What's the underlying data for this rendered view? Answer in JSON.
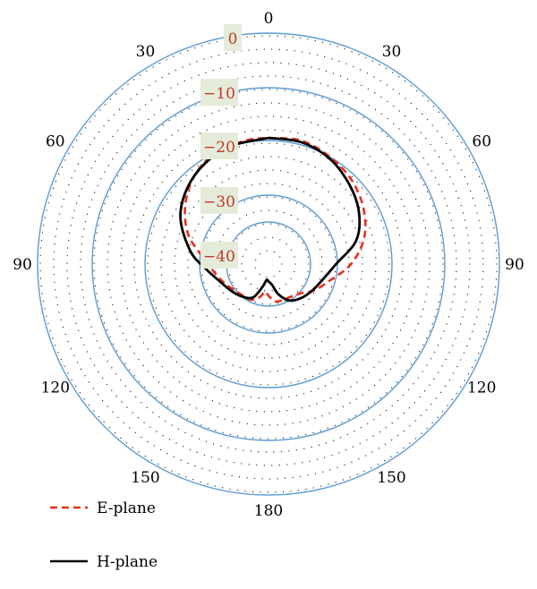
{
  "chart_data": {
    "type": "polar-line",
    "title": "",
    "r_tick_labels": [
      "0",
      "−10",
      "−20",
      "−30",
      "−40"
    ],
    "r_ticks": [
      0,
      -10,
      -20,
      -30,
      -40
    ],
    "r_range": [
      -50,
      0
    ],
    "angle_tick_labels": [
      {
        "angle": 0,
        "label": "0"
      },
      {
        "angle": 30,
        "label": "30"
      },
      {
        "angle": 60,
        "label": "60"
      },
      {
        "angle": 90,
        "label": "90"
      },
      {
        "angle": 120,
        "label": "120"
      },
      {
        "angle": 150,
        "label": "150"
      },
      {
        "angle": 180,
        "label": "180"
      },
      {
        "angle": 210,
        "label": "150"
      },
      {
        "angle": 240,
        "label": "120"
      },
      {
        "angle": 270,
        "label": "90"
      },
      {
        "angle": 300,
        "label": "60"
      },
      {
        "angle": 330,
        "label": "30"
      }
    ],
    "grid": "dotted",
    "legend_position": "bottom-left",
    "colors": {
      "ring": "#5b9bd5",
      "e_plane": "#e8311a",
      "h_plane": "#000000",
      "label_text": "#c0392b",
      "label_bg": "#e4ebd9"
    },
    "series": [
      {
        "name": "E-plane",
        "style": "dashed",
        "points": [
          [
            0,
            -19.5
          ],
          [
            15,
            -19.2
          ],
          [
            30,
            -20
          ],
          [
            45,
            -21
          ],
          [
            60,
            -22.5
          ],
          [
            75,
            -24.5
          ],
          [
            90,
            -27.5
          ],
          [
            105,
            -32
          ],
          [
            120,
            -36
          ],
          [
            130,
            -39
          ],
          [
            140,
            -40.5
          ],
          [
            150,
            -41.2
          ],
          [
            160,
            -41.3
          ],
          [
            170,
            -41.6
          ],
          [
            180,
            -44
          ],
          [
            187,
            -45.5
          ],
          [
            195,
            -43
          ],
          [
            205,
            -41
          ],
          [
            215,
            -40.6
          ],
          [
            230,
            -40
          ],
          [
            245,
            -38
          ],
          [
            260,
            -35.5
          ],
          [
            275,
            -31.5
          ],
          [
            290,
            -27
          ],
          [
            305,
            -24
          ],
          [
            320,
            -21.5
          ],
          [
            335,
            -20
          ],
          [
            350,
            -19.6
          ],
          [
            360,
            -19.5
          ]
        ]
      },
      {
        "name": "H-plane",
        "style": "solid",
        "points": [
          [
            0,
            -19.5
          ],
          [
            15,
            -19.5
          ],
          [
            30,
            -20.3
          ],
          [
            45,
            -21.8
          ],
          [
            60,
            -23.5
          ],
          [
            75,
            -26
          ],
          [
            90,
            -30.5
          ],
          [
            105,
            -34.5
          ],
          [
            120,
            -36.5
          ],
          [
            135,
            -38
          ],
          [
            150,
            -40
          ],
          [
            162,
            -44
          ],
          [
            170,
            -48
          ],
          [
            180,
            -49.5
          ],
          [
            187,
            -50
          ],
          [
            195,
            -47
          ],
          [
            205,
            -42
          ],
          [
            220,
            -40
          ],
          [
            235,
            -38.5
          ],
          [
            250,
            -36.5
          ],
          [
            265,
            -32.5
          ],
          [
            280,
            -28
          ],
          [
            300,
            -24
          ],
          [
            320,
            -21.5
          ],
          [
            340,
            -20
          ],
          [
            360,
            -19.5
          ]
        ]
      }
    ]
  },
  "legend": {
    "items": [
      {
        "name": "E-plane"
      },
      {
        "name": "H-plane"
      }
    ]
  }
}
